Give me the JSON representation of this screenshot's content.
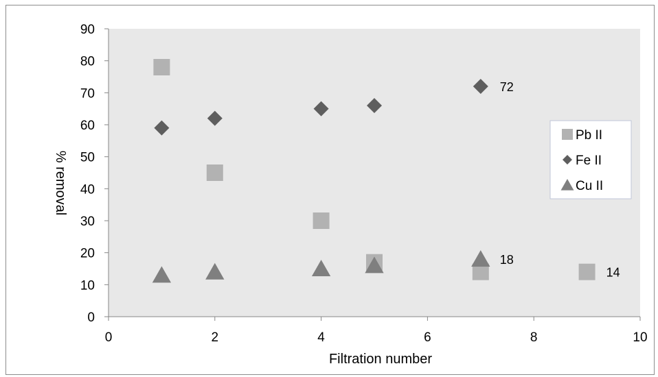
{
  "chart_data": {
    "type": "scatter",
    "title": "",
    "xlabel": "Filtration number",
    "ylabel": "% removal",
    "xlim": [
      0,
      10
    ],
    "ylim": [
      0,
      90
    ],
    "xticks": [
      0,
      2,
      4,
      6,
      8,
      10
    ],
    "yticks": [
      0,
      10,
      20,
      30,
      40,
      50,
      60,
      70,
      80,
      90
    ],
    "grid": false,
    "legend_position": "right",
    "series": [
      {
        "name": "Pb II",
        "marker": "square",
        "color": "#b2b2b2",
        "points": [
          {
            "x": 1,
            "y": 78
          },
          {
            "x": 2,
            "y": 45
          },
          {
            "x": 4,
            "y": 30
          },
          {
            "x": 5,
            "y": 17
          },
          {
            "x": 7,
            "y": 14
          },
          {
            "x": 9,
            "y": 14
          }
        ]
      },
      {
        "name": "Fe II",
        "marker": "diamond",
        "color": "#5e5e5e",
        "points": [
          {
            "x": 1,
            "y": 59
          },
          {
            "x": 2,
            "y": 62
          },
          {
            "x": 4,
            "y": 65
          },
          {
            "x": 5,
            "y": 66
          },
          {
            "x": 7,
            "y": 72
          }
        ]
      },
      {
        "name": "Cu II",
        "marker": "triangle",
        "color": "#7f7f7f",
        "points": [
          {
            "x": 1,
            "y": 13
          },
          {
            "x": 2,
            "y": 14
          },
          {
            "x": 4,
            "y": 15
          },
          {
            "x": 5,
            "y": 16
          },
          {
            "x": 7,
            "y": 18
          }
        ]
      }
    ],
    "annotations": [
      {
        "text": "72",
        "series": "Fe II",
        "x": 7,
        "y": 72
      },
      {
        "text": "18",
        "series": "Cu II",
        "x": 7,
        "y": 18
      },
      {
        "text": "14",
        "series": "Pb II",
        "x": 9,
        "y": 14
      }
    ],
    "colors": {
      "plot_background": "#e8e8e8",
      "legend_border": "#bfc6d9"
    }
  }
}
